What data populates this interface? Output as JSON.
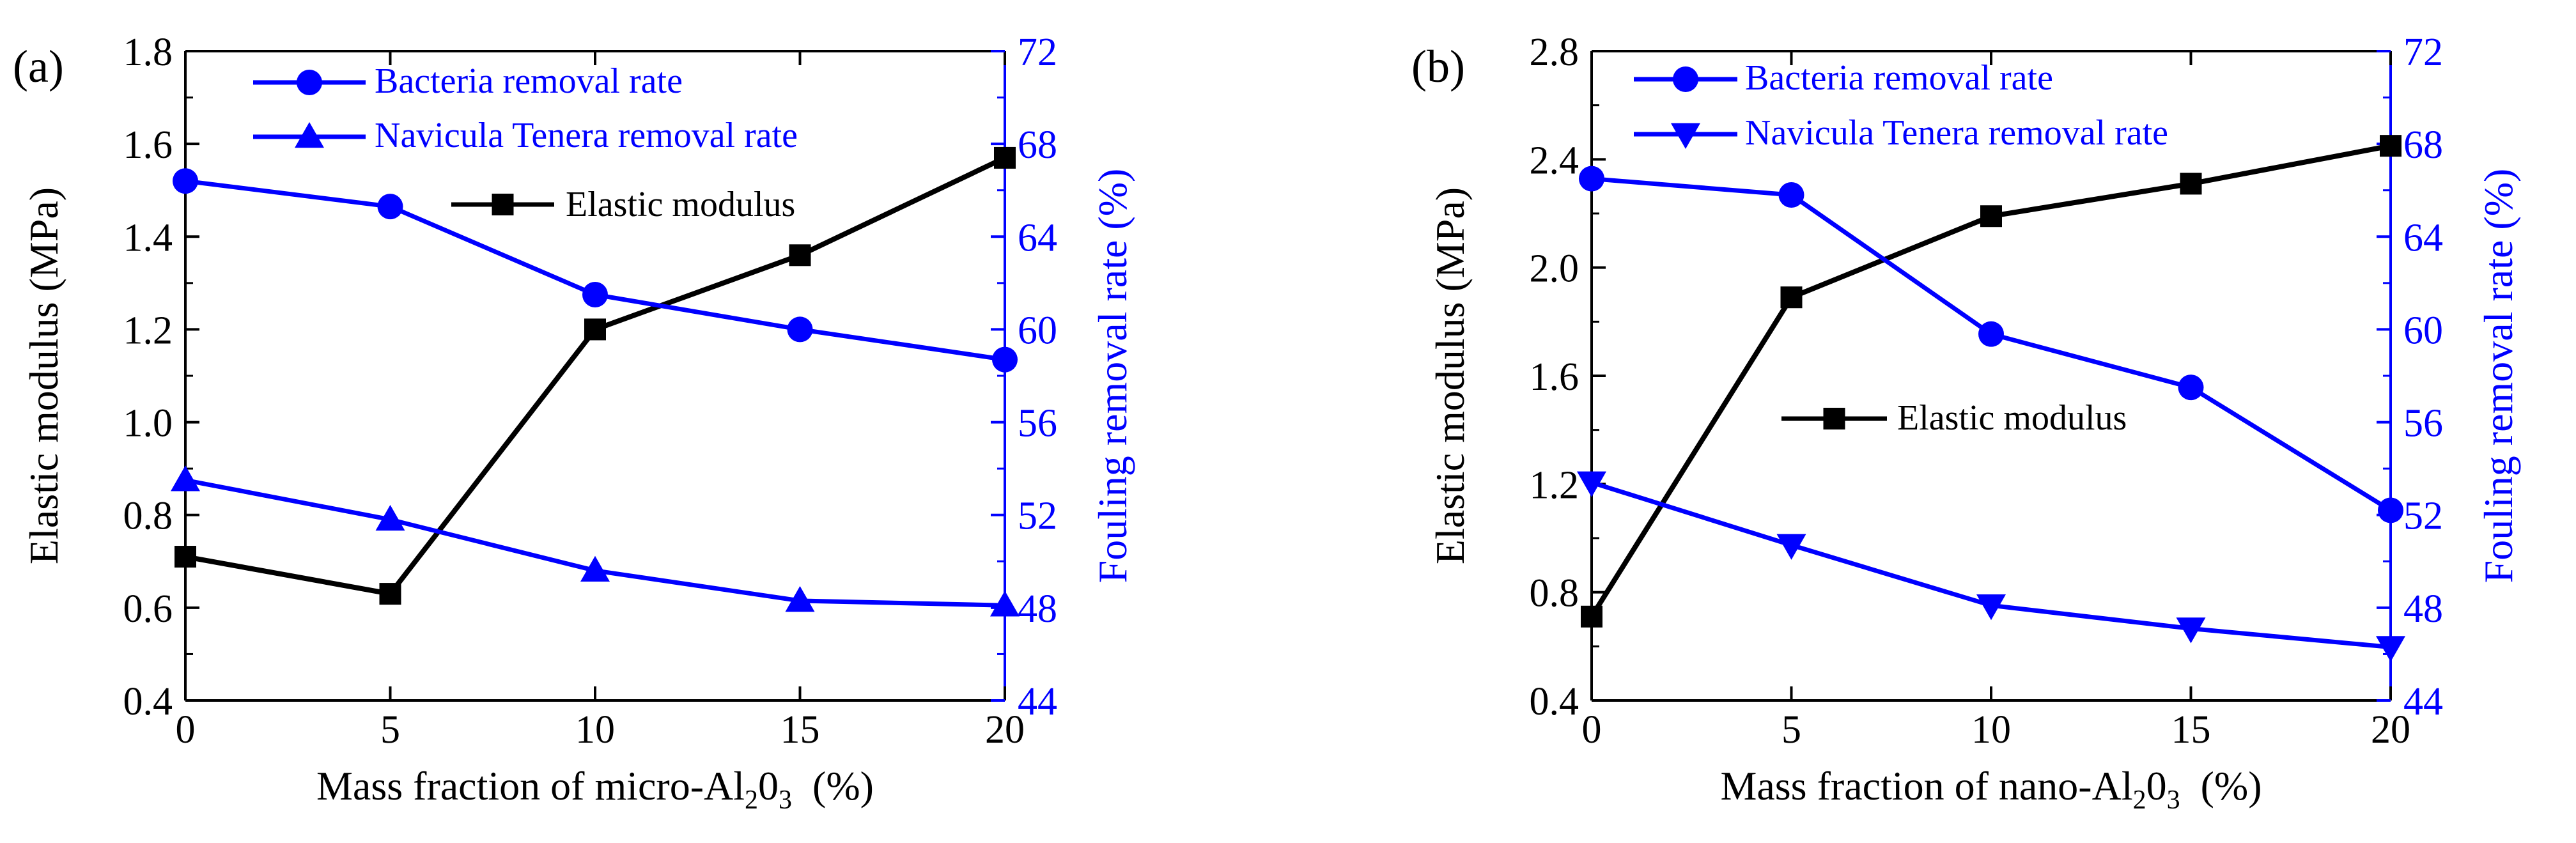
{
  "colors": {
    "left_axis": "#000000",
    "right_axis": "#0000ff",
    "series_elastic": "#000000",
    "series_fouling": "#0000ff"
  },
  "chart_data": [
    {
      "panel_label": "(a)",
      "type": "line",
      "x": [
        0,
        5,
        10,
        15,
        20
      ],
      "xlim": [
        0,
        20
      ],
      "x_ticks": [
        "0",
        "5",
        "10",
        "15",
        "20"
      ],
      "xlabel_main": "Mass fraction of  micro-Al",
      "xlabel_sub1": "2",
      "xlabel_mid": "0",
      "xlabel_sub2": "3",
      "xlabel_unit": "(%)",
      "ylabel": "Elastic modulus (MPa)",
      "ylim": [
        0.4,
        1.8
      ],
      "y_ticks": [
        "0.4",
        "0.6",
        "0.8",
        "1.0",
        "1.2",
        "1.4",
        "1.6",
        "1.8"
      ],
      "y2label": "Fouling removal rate (%)",
      "y2lim": [
        44,
        72
      ],
      "y2_ticks": [
        "44",
        "48",
        "52",
        "56",
        "60",
        "64",
        "68",
        "72"
      ],
      "series": [
        {
          "name": "Elastic modulus",
          "axis": "left",
          "marker": "square",
          "values": [
            0.71,
            0.63,
            1.2,
            1.36,
            1.57
          ]
        },
        {
          "name": "Bacteria removal rate",
          "axis": "right",
          "marker": "circle",
          "values": [
            66.4,
            65.3,
            61.5,
            60.0,
            58.7
          ]
        },
        {
          "name": "Navicula Tenera removal rate",
          "axis": "right",
          "marker": "triangle-up",
          "values": [
            53.5,
            51.8,
            49.6,
            48.3,
            48.1
          ]
        }
      ]
    },
    {
      "panel_label": "(b)",
      "type": "line",
      "x": [
        0,
        5,
        10,
        15,
        20
      ],
      "xlim": [
        0,
        20
      ],
      "x_ticks": [
        "0",
        "5",
        "10",
        "15",
        "20"
      ],
      "xlabel_main": "Mass fraction of nano-Al",
      "xlabel_sub1": "2",
      "xlabel_mid": "0",
      "xlabel_sub2": "3",
      "xlabel_unit": "(%)",
      "ylabel": "Elastic modulus (MPa)",
      "ylim": [
        0.4,
        2.8
      ],
      "y_ticks": [
        "0.4",
        "0.8",
        "1.2",
        "1.6",
        "2.0",
        "2.4",
        "2.8"
      ],
      "y2label": "Fouling removal rate (%)",
      "y2lim": [
        44,
        72
      ],
      "y2_ticks": [
        "44",
        "48",
        "52",
        "56",
        "60",
        "64",
        "68",
        "72"
      ],
      "series": [
        {
          "name": "Elastic modulus",
          "axis": "left",
          "marker": "square",
          "values": [
            0.71,
            1.89,
            2.19,
            2.31,
            2.45
          ]
        },
        {
          "name": "Bacteria removal rate",
          "axis": "right",
          "marker": "circle",
          "values": [
            66.5,
            65.8,
            59.8,
            57.5,
            52.2
          ]
        },
        {
          "name": "Navicula Tenera removal rate",
          "axis": "right",
          "marker": "triangle-down",
          "values": [
            53.4,
            50.7,
            48.1,
            47.1,
            46.3
          ]
        }
      ]
    }
  ]
}
